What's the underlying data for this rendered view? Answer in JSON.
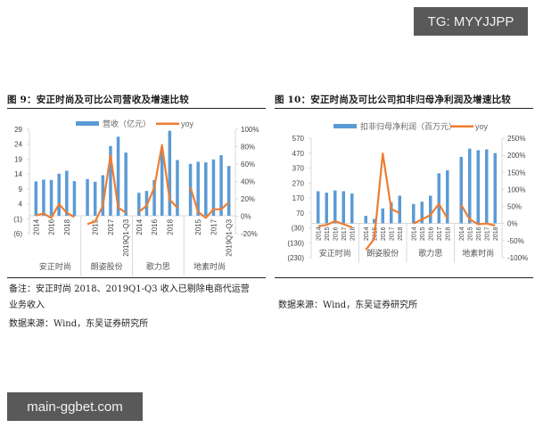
{
  "watermarks": {
    "top_right": "TG: MYYJJPP",
    "bottom_left": "main-ggbet.com"
  },
  "colors": {
    "bar": "#5b9bd5",
    "line": "#ed7d31",
    "axis": "#d9d9d9",
    "rule": "#222222",
    "badge_bg": "#595959"
  },
  "figure9": {
    "title": "图 9：安正时尚及可比公司营收及增速比较",
    "legend": {
      "bar": "营收（亿元）",
      "line": "yoy"
    },
    "notes": [
      "备注：安正时尚 2018、2019Q1-Q3 收入已剔除电商代运营",
      "业务收入",
      "数据来源：Wind，东吴证券研究所"
    ]
  },
  "figure10": {
    "title": "图 10：安正时尚及可比公司扣非归母净利润及增速比较",
    "legend": {
      "bar": "扣非归母净利润（百万元）",
      "line": "yoy"
    },
    "notes": [
      "数据来源：Wind，东吴证券研究所"
    ]
  },
  "chart_data": [
    {
      "type": "bar",
      "title": "图 9：安正时尚及可比公司营收及增速比较",
      "xlabel": "",
      "ylabel": "营收（亿元）",
      "y2label": "yoy",
      "left_axis": {
        "ticks": [
          "29",
          "24",
          "19",
          "14",
          "9",
          "4",
          "(1)",
          "(6)"
        ],
        "range": [
          -6,
          29
        ]
      },
      "right_axis": {
        "ticks": [
          "100%",
          "80%",
          "60%",
          "40%",
          "20%",
          "0%",
          "-20%"
        ],
        "range": [
          -20,
          100
        ]
      },
      "legend_position": "top",
      "grid": false,
      "groups": [
        {
          "name": "安正时尚",
          "categories": [
            "2014",
            "2015",
            "2016",
            "2017",
            "2018",
            "2019Q1-Q3"
          ],
          "tick_labels": [
            "2014",
            "2016",
            "2018"
          ],
          "revenue": [
            11.5,
            12.1,
            12.0,
            14.1,
            15.1,
            11.6
          ],
          "yoy": [
            1,
            3,
            -2,
            14,
            4,
            -1
          ]
        },
        {
          "name": "朗姿股份",
          "categories": [
            "2014",
            "2015",
            "2016",
            "2017",
            "2018",
            "2019Q1-Q3"
          ],
          "tick_labels": [
            "2015",
            "2017",
            "2019Q1-Q3"
          ],
          "revenue": [
            12.3,
            11.4,
            13.6,
            23.4,
            26.5,
            21.2
          ],
          "yoy": [
            -9,
            -6,
            12,
            70,
            10,
            4
          ]
        },
        {
          "name": "歌力思",
          "categories": [
            "2014",
            "2015",
            "2016",
            "2017",
            "2018",
            "2019Q1-Q3"
          ],
          "tick_labels": [
            "2014",
            "2016",
            "2018"
          ],
          "revenue": [
            7.7,
            8.3,
            12.0,
            21.7,
            28.5,
            18.7
          ],
          "yoy": [
            5,
            12,
            33,
            82,
            19,
            10
          ]
        },
        {
          "name": "地素时尚",
          "categories": [
            "2014",
            "2015",
            "2016",
            "2017",
            "2018",
            "2019Q1-Q3"
          ],
          "tick_labels": [
            "2015",
            "2017",
            "2019Q1-Q3"
          ],
          "revenue": [
            17.4,
            18.1,
            17.9,
            18.9,
            20.3,
            16.7
          ],
          "yoy": [
            33,
            5,
            -2,
            8,
            8,
            16
          ]
        }
      ]
    },
    {
      "type": "bar",
      "title": "图 10：安正时尚及可比公司扣非归母净利润及增速比较",
      "xlabel": "",
      "ylabel": "扣非归母净利润（百万元）",
      "y2label": "yoy",
      "left_axis": {
        "ticks": [
          "570",
          "470",
          "370",
          "270",
          "170",
          "70",
          "(30)",
          "(130)",
          "(230)"
        ],
        "range": [
          -230,
          570
        ]
      },
      "right_axis": {
        "ticks": [
          "250%",
          "200%",
          "150%",
          "100%",
          "50%",
          "0%",
          "-50%",
          "-100%"
        ],
        "range": [
          -100,
          250
        ]
      },
      "legend_position": "top",
      "grid": false,
      "groups": [
        {
          "name": "安正时尚",
          "categories": [
            "2014",
            "2015",
            "2016",
            "2017",
            "2018"
          ],
          "profit": [
            215,
            205,
            220,
            215,
            200
          ],
          "yoy": [
            -8,
            -4,
            7,
            -2,
            -11
          ]
        },
        {
          "name": "朗姿股份",
          "categories": [
            "2014",
            "2015",
            "2016",
            "2017",
            "2018"
          ],
          "profit": [
            50,
            30,
            100,
            140,
            185
          ],
          "yoy": [
            -77,
            -45,
            205,
            43,
            30
          ]
        },
        {
          "name": "歌力思",
          "categories": [
            "2014",
            "2015",
            "2016",
            "2017",
            "2018"
          ],
          "profit": [
            130,
            145,
            185,
            335,
            355
          ],
          "yoy": [
            0,
            12,
            25,
            58,
            15
          ]
        },
        {
          "name": "地素时尚",
          "categories": [
            "2014",
            "2015",
            "2016",
            "2017",
            "2018"
          ],
          "profit": [
            445,
            500,
            490,
            495,
            470
          ],
          "yoy": [
            55,
            12,
            -2,
            0,
            -6
          ]
        }
      ]
    }
  ]
}
